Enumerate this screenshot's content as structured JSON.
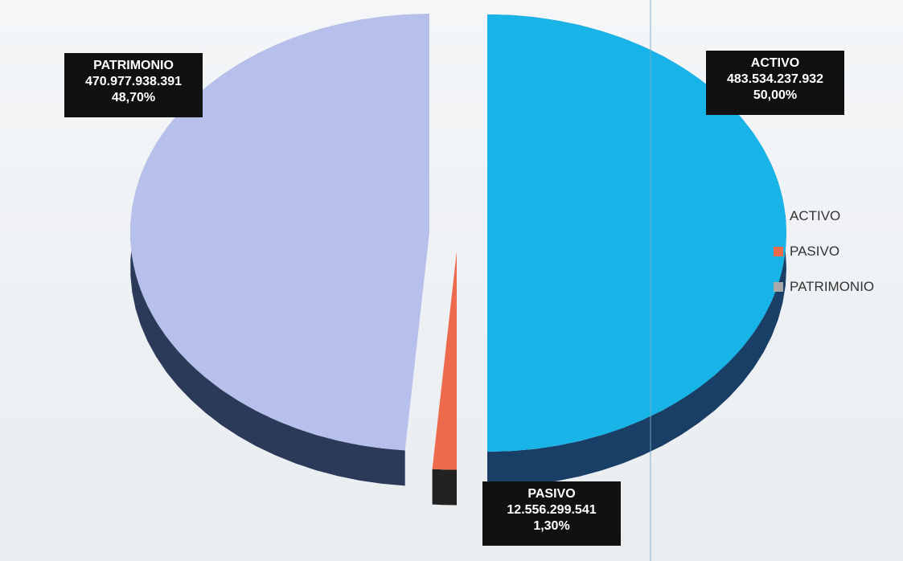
{
  "chart_data": {
    "type": "pie",
    "slices": [
      {
        "label": "ACTIVO",
        "value": "483.534.237.932",
        "percent": "50,00%",
        "pct": 50.0,
        "color": "#18b4e8"
      },
      {
        "label": "PASIVO",
        "value": "12.556.299.541",
        "percent": "1,30%",
        "pct": 1.3,
        "color": "#ee6a4c"
      },
      {
        "label": "PATRIMONIO",
        "value": "470.977.938.391",
        "percent": "48,70%",
        "pct": 48.7,
        "color": "#b7bfeb"
      }
    ],
    "legend": {
      "position": "right",
      "items": [
        "ACTIVO",
        "PASIVO",
        "PATRIMONIO"
      ]
    },
    "legend_colors": [
      "#18b4e8",
      "#ee6a4c",
      "#a9a9a9"
    ]
  }
}
